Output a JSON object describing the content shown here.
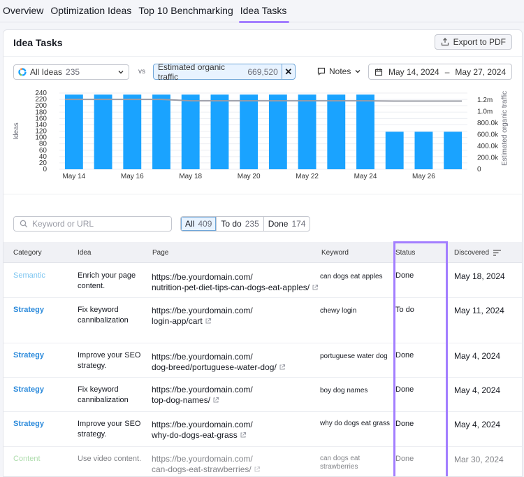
{
  "nav": {
    "tabs": [
      {
        "label": "Overview"
      },
      {
        "label": "Optimization Ideas"
      },
      {
        "label": "Top 10 Benchmarking"
      },
      {
        "label": "Idea Tasks"
      }
    ],
    "active_tab": "Idea Tasks"
  },
  "panel": {
    "title": "Idea Tasks",
    "export_label": "Export to PDF"
  },
  "filters": {
    "ideas_label": "All Ideas",
    "ideas_count": "235",
    "vs_label": "vs",
    "metric_label": "Estimated organic traffic",
    "metric_value": "669,520",
    "notes_label": "Notes",
    "date_start": "May 14, 2024",
    "date_sep": "–",
    "date_end": "May 27, 2024"
  },
  "chart_data": {
    "type": "bar",
    "categories": [
      "May 14",
      "May 15",
      "May 16",
      "May 17",
      "May 18",
      "May 19",
      "May 20",
      "May 21",
      "May 22",
      "May 23",
      "May 24",
      "May 25",
      "May 26",
      "May 27"
    ],
    "x_tick_labels": [
      "May 14",
      "May 16",
      "May 18",
      "May 20",
      "May 22",
      "May 24",
      "May 26"
    ],
    "series": [
      {
        "name": "Ideas",
        "type": "bar",
        "values": [
          235,
          235,
          235,
          235,
          235,
          235,
          235,
          235,
          235,
          235,
          235,
          118,
          118,
          118
        ]
      },
      {
        "name": "Estimated organic traffic",
        "type": "line",
        "values": [
          1210000,
          1210000,
          1210000,
          1210000,
          1185000,
          1185000,
          1185000,
          1185000,
          1185000,
          1185000,
          1185000,
          1180000,
          1180000,
          1180000
        ]
      }
    ],
    "ylabel": "Ideas",
    "y2label": "Estimated organic traffic",
    "ylim": [
      0,
      240
    ],
    "y_ticks": [
      "240",
      "220",
      "200",
      "180",
      "160",
      "140",
      "120",
      "100",
      "80",
      "60",
      "40",
      "20",
      "0"
    ],
    "y2lim": [
      0,
      1320000
    ],
    "y2_ticks": [
      "1.2m",
      "1.0m",
      "800.0k",
      "600.0k",
      "400.0k",
      "200.0k",
      "0"
    ],
    "grid": true,
    "colors": {
      "bar": "#1aa3ff",
      "line": "#9a9ca6"
    }
  },
  "search": {
    "placeholder": "Keyword or URL"
  },
  "segments": [
    {
      "label": "All",
      "count": "409"
    },
    {
      "label": "To do",
      "count": "235"
    },
    {
      "label": "Done",
      "count": "174"
    }
  ],
  "table": {
    "headers": {
      "category": "Category",
      "idea": "Idea",
      "page": "Page",
      "keyword": "Keyword",
      "status": "Status",
      "discovered": "Discovered"
    },
    "rows": [
      {
        "category": "Semantic",
        "idea": "Enrich your page content.",
        "page_line1": "https://be.yourdomain.com/",
        "page_line2": "nutrition-pet-diet-tips-can-dogs-eat-apples/",
        "keyword": "can dogs eat apples",
        "status": "Done",
        "discovered": "May 18, 2024"
      },
      {
        "category": "Strategy",
        "idea": "Fix keyword cannibalization",
        "page_line1": "https://be.yourdomain.com/",
        "page_line2": "login-app/cart",
        "keyword": "chewy login",
        "status": "To do",
        "discovered": "May 11, 2024"
      },
      {
        "category": "Strategy",
        "idea": "Improve your SEO strategy.",
        "page_line1": "https://be.yourdomain.com/",
        "page_line2": "dog-breed/portuguese-water-dog/",
        "keyword": "portuguese water dog",
        "status": "Done",
        "discovered": "May 4, 2024"
      },
      {
        "category": "Strategy",
        "idea": "Fix keyword cannibalization",
        "page_line1": "https://be.yourdomain.com/",
        "page_line2": "top-dog-names/",
        "keyword": "boy dog names",
        "status": "Done",
        "discovered": "May 4, 2024"
      },
      {
        "category": "Strategy",
        "idea": "Improve your SEO strategy.",
        "page_line1": "https://be.yourdomain.com/",
        "page_line2": "why-do-dogs-eat-grass",
        "keyword": "why do dogs eat grass",
        "status": "Done",
        "discovered": "May 4, 2024"
      },
      {
        "category": "Content",
        "idea": "Use video content.",
        "page_line1": "https://be.yourdomain.com/",
        "page_line2": "can-dogs-eat-strawberries/",
        "keyword": "can dogs eat strawberries",
        "status": "Done",
        "discovered": "Mar 30, 2024"
      }
    ]
  },
  "colors": {
    "accent": "#a37eff",
    "link": "#2b8adb",
    "bar": "#1aa3ff"
  }
}
